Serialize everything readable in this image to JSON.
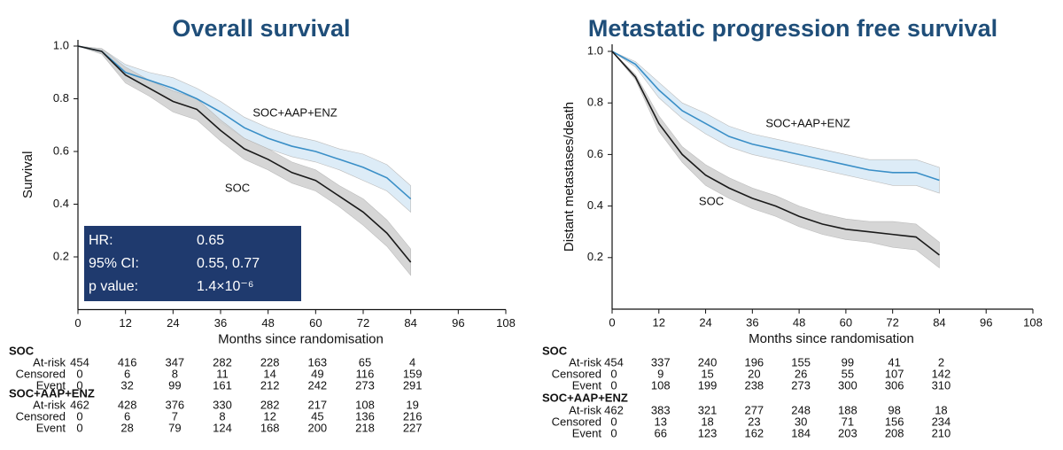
{
  "chart_data": [
    {
      "type": "line",
      "title": "Overall survival",
      "xlabel": "Months since randomisation",
      "ylabel": "Survival",
      "x": [
        0,
        6,
        12,
        18,
        24,
        30,
        36,
        42,
        48,
        54,
        60,
        66,
        72,
        78,
        84
      ],
      "xlim": [
        0,
        108
      ],
      "xticks": [
        0,
        12,
        24,
        36,
        48,
        60,
        72,
        84,
        96,
        108
      ],
      "ylim": [
        0,
        1
      ],
      "yticks": [
        0.2,
        0.4,
        0.6,
        0.8,
        {
          "value": 1,
          "label": "1.0"
        }
      ],
      "series": [
        {
          "name": "SOC+AAP+ENZ",
          "color": "#3a8fc7",
          "band_color": "#d8e9f6",
          "values": [
            1.0,
            0.98,
            0.9,
            0.87,
            0.84,
            0.8,
            0.75,
            0.69,
            0.65,
            0.62,
            0.6,
            0.57,
            0.54,
            0.5,
            0.42
          ],
          "ci_lower": [
            1.0,
            0.97,
            0.87,
            0.84,
            0.8,
            0.76,
            0.71,
            0.65,
            0.61,
            0.58,
            0.56,
            0.53,
            0.49,
            0.45,
            0.37
          ],
          "ci_upper": [
            1.0,
            0.99,
            0.93,
            0.9,
            0.88,
            0.84,
            0.79,
            0.73,
            0.69,
            0.66,
            0.64,
            0.61,
            0.59,
            0.55,
            0.47
          ]
        },
        {
          "name": "SOC",
          "color": "#1a1a1a",
          "band_color": "#d0d0d0",
          "values": [
            1.0,
            0.98,
            0.89,
            0.84,
            0.79,
            0.76,
            0.68,
            0.61,
            0.57,
            0.52,
            0.49,
            0.43,
            0.37,
            0.29,
            0.18
          ],
          "ci_lower": [
            1.0,
            0.97,
            0.86,
            0.81,
            0.75,
            0.72,
            0.64,
            0.57,
            0.53,
            0.48,
            0.45,
            0.39,
            0.32,
            0.24,
            0.13
          ],
          "ci_upper": [
            1.0,
            0.99,
            0.92,
            0.87,
            0.83,
            0.8,
            0.72,
            0.65,
            0.61,
            0.56,
            0.53,
            0.47,
            0.42,
            0.34,
            0.23
          ]
        }
      ],
      "stats": [
        {
          "label": "HR:",
          "value": "0.65"
        },
        {
          "label": "95% CI:",
          "value": "0.55, 0.77"
        },
        {
          "label": "p value:",
          "value": "1.4×10⁻⁶"
        }
      ],
      "risk_table": {
        "groups": [
          {
            "name": "SOC",
            "rows": [
              {
                "label": "At-risk",
                "values": [
                  454,
                  416,
                  347,
                  282,
                  228,
                  163,
                  65,
                  4
                ]
              },
              {
                "label": "Censored",
                "values": [
                  0,
                  6,
                  8,
                  11,
                  14,
                  49,
                  116,
                  159
                ]
              },
              {
                "label": "Event",
                "values": [
                  0,
                  32,
                  99,
                  161,
                  212,
                  242,
                  273,
                  291
                ]
              }
            ]
          },
          {
            "name": "SOC+AAP+ENZ",
            "rows": [
              {
                "label": "At-risk",
                "values": [
                  462,
                  428,
                  376,
                  330,
                  282,
                  217,
                  108,
                  19
                ]
              },
              {
                "label": "Censored",
                "values": [
                  0,
                  6,
                  7,
                  8,
                  12,
                  45,
                  136,
                  216
                ]
              },
              {
                "label": "Event",
                "values": [
                  0,
                  28,
                  79,
                  124,
                  168,
                  200,
                  218,
                  227
                ]
              }
            ]
          }
        ]
      }
    },
    {
      "type": "line",
      "title": "Metastatic progression free survival",
      "xlabel": "Months since randomisation",
      "ylabel": "Distant metastases/death",
      "x": [
        0,
        6,
        12,
        18,
        24,
        30,
        36,
        42,
        48,
        54,
        60,
        66,
        72,
        78,
        84
      ],
      "xlim": [
        0,
        108
      ],
      "xticks": [
        0,
        12,
        24,
        36,
        48,
        60,
        72,
        84,
        96,
        108
      ],
      "ylim": [
        0,
        1
      ],
      "yticks": [
        0.2,
        0.4,
        0.6,
        0.8,
        {
          "value": 1,
          "label": "1.0"
        }
      ],
      "series": [
        {
          "name": "SOC+AAP+ENZ",
          "color": "#3a8fc7",
          "band_color": "#d8e9f6",
          "values": [
            1.0,
            0.95,
            0.85,
            0.77,
            0.72,
            0.67,
            0.64,
            0.62,
            0.6,
            0.58,
            0.56,
            0.54,
            0.53,
            0.53,
            0.5
          ],
          "ci_lower": [
            1.0,
            0.94,
            0.82,
            0.74,
            0.68,
            0.63,
            0.6,
            0.58,
            0.56,
            0.54,
            0.52,
            0.5,
            0.48,
            0.48,
            0.45
          ],
          "ci_upper": [
            1.0,
            0.96,
            0.88,
            0.8,
            0.76,
            0.71,
            0.68,
            0.66,
            0.64,
            0.62,
            0.6,
            0.58,
            0.58,
            0.58,
            0.55
          ]
        },
        {
          "name": "SOC",
          "color": "#1a1a1a",
          "band_color": "#d0d0d0",
          "values": [
            1.0,
            0.9,
            0.72,
            0.6,
            0.52,
            0.47,
            0.43,
            0.4,
            0.36,
            0.33,
            0.31,
            0.3,
            0.29,
            0.28,
            0.21
          ],
          "ci_lower": [
            1.0,
            0.89,
            0.69,
            0.57,
            0.48,
            0.43,
            0.39,
            0.36,
            0.32,
            0.29,
            0.27,
            0.26,
            0.24,
            0.23,
            0.16
          ],
          "ci_upper": [
            1.0,
            0.91,
            0.75,
            0.63,
            0.56,
            0.51,
            0.47,
            0.44,
            0.4,
            0.37,
            0.35,
            0.34,
            0.34,
            0.33,
            0.26
          ]
        }
      ],
      "risk_table": {
        "groups": [
          {
            "name": "SOC",
            "rows": [
              {
                "label": "At-risk",
                "values": [
                  454,
                  337,
                  240,
                  196,
                  155,
                  99,
                  41,
                  2
                ]
              },
              {
                "label": "Censored",
                "values": [
                  0,
                  9,
                  15,
                  20,
                  26,
                  55,
                  107,
                  142
                ]
              },
              {
                "label": "Event",
                "values": [
                  0,
                  108,
                  199,
                  238,
                  273,
                  300,
                  306,
                  310
                ]
              }
            ]
          },
          {
            "name": "SOC+AAP+ENZ",
            "rows": [
              {
                "label": "At-risk",
                "values": [
                  462,
                  383,
                  321,
                  277,
                  248,
                  188,
                  98,
                  18
                ]
              },
              {
                "label": "Censored",
                "values": [
                  0,
                  13,
                  18,
                  23,
                  30,
                  71,
                  156,
                  234
                ]
              },
              {
                "label": "Event",
                "values": [
                  0,
                  66,
                  123,
                  162,
                  184,
                  203,
                  208,
                  210
                ]
              }
            ]
          }
        ]
      }
    }
  ]
}
